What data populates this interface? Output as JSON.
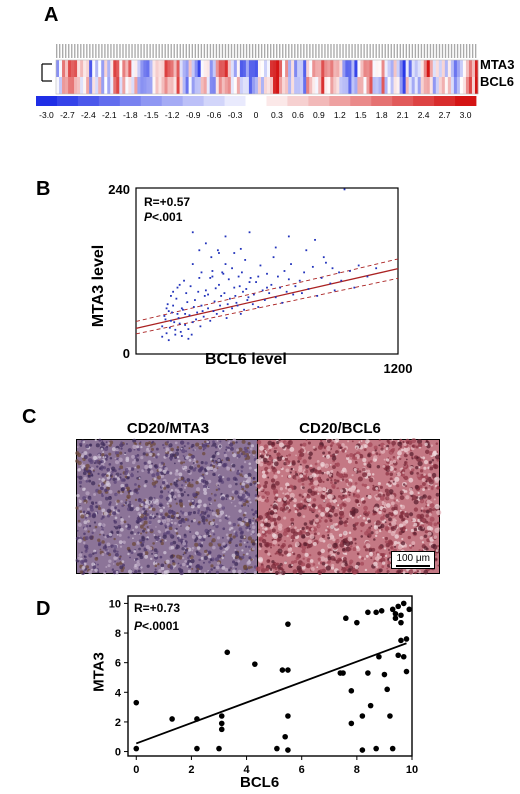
{
  "panelA": {
    "letter": "A",
    "rows": [
      "MTA3",
      "BCL6"
    ],
    "scale_ticks": [
      "-3.0",
      "-2.7",
      "-2.4",
      "-2.1",
      "-1.8",
      "-1.5",
      "-1.2",
      "-0.9",
      "-0.6",
      "-0.3",
      "0",
      "0.3",
      "0.6",
      "0.9",
      "1.2",
      "1.5",
      "1.8",
      "2.1",
      "2.4",
      "2.7",
      "3.0"
    ],
    "low_color": "#1f2ee6",
    "mid_color": "#ffffff",
    "high_color": "#d41414"
  },
  "panelB": {
    "letter": "B",
    "stat_r": "R=+0.57",
    "stat_p_symbol": "P",
    "stat_p_value": "<.001",
    "chart_data": {
      "type": "scatter",
      "xlabel": "BCL6 level",
      "ylabel": "MTA3 level",
      "y_top_label": "240",
      "y_bottom_label": "0",
      "x_right_label": "1200",
      "xlim": [
        0,
        1200
      ],
      "ylim": [
        0,
        240
      ],
      "regression": {
        "slope": 0.072,
        "intercept": 37
      },
      "point_color": "#2233bb",
      "fit_color": "#aa2222",
      "points": [
        [
          120,
          40
        ],
        [
          130,
          55
        ],
        [
          140,
          30
        ],
        [
          150,
          62
        ],
        [
          160,
          48
        ],
        [
          170,
          70
        ],
        [
          180,
          35
        ],
        [
          190,
          58
        ],
        [
          200,
          44
        ],
        [
          210,
          66
        ],
        [
          120,
          25
        ],
        [
          135,
          50
        ],
        [
          145,
          72
        ],
        [
          155,
          38
        ],
        [
          165,
          60
        ],
        [
          175,
          46
        ],
        [
          185,
          80
        ],
        [
          195,
          52
        ],
        [
          205,
          32
        ],
        [
          215,
          64
        ],
        [
          225,
          42
        ],
        [
          235,
          75
        ],
        [
          245,
          56
        ],
        [
          255,
          28
        ],
        [
          265,
          68
        ],
        [
          275,
          50
        ],
        [
          285,
          90
        ],
        [
          295,
          40
        ],
        [
          305,
          62
        ],
        [
          315,
          84
        ],
        [
          225,
          58
        ],
        [
          240,
          36
        ],
        [
          250,
          98
        ],
        [
          260,
          46
        ],
        [
          270,
          78
        ],
        [
          280,
          60
        ],
        [
          290,
          110
        ],
        [
          300,
          70
        ],
        [
          310,
          54
        ],
        [
          320,
          92
        ],
        [
          330,
          66
        ],
        [
          340,
          48
        ],
        [
          350,
          120
        ],
        [
          360,
          76
        ],
        [
          370,
          58
        ],
        [
          380,
          100
        ],
        [
          390,
          84
        ],
        [
          400,
          62
        ],
        [
          410,
          130
        ],
        [
          420,
          72
        ],
        [
          330,
          86
        ],
        [
          345,
          140
        ],
        [
          355,
          62
        ],
        [
          365,
          95
        ],
        [
          375,
          150
        ],
        [
          385,
          70
        ],
        [
          395,
          118
        ],
        [
          405,
          88
        ],
        [
          415,
          52
        ],
        [
          425,
          108
        ],
        [
          430,
          80
        ],
        [
          440,
          66
        ],
        [
          450,
          96
        ],
        [
          460,
          74
        ],
        [
          470,
          112
        ],
        [
          480,
          58
        ],
        [
          490,
          90
        ],
        [
          500,
          136
        ],
        [
          510,
          78
        ],
        [
          520,
          104
        ],
        [
          440,
          124
        ],
        [
          455,
          84
        ],
        [
          465,
          70
        ],
        [
          475,
          98
        ],
        [
          485,
          118
        ],
        [
          495,
          64
        ],
        [
          505,
          94
        ],
        [
          515,
          82
        ],
        [
          525,
          110
        ],
        [
          535,
          72
        ],
        [
          540,
          86
        ],
        [
          550,
          104
        ],
        [
          560,
          68
        ],
        [
          570,
          128
        ],
        [
          580,
          92
        ],
        [
          590,
          78
        ],
        [
          600,
          116
        ],
        [
          610,
          88
        ],
        [
          620,
          100
        ],
        [
          630,
          140
        ],
        [
          640,
          82
        ],
        [
          650,
          112
        ],
        [
          660,
          96
        ],
        [
          670,
          74
        ],
        [
          680,
          120
        ],
        [
          690,
          90
        ],
        [
          700,
          108
        ],
        [
          710,
          130
        ],
        [
          720,
          86
        ],
        [
          730,
          98
        ],
        [
          750,
          106
        ],
        [
          770,
          118
        ],
        [
          790,
          94
        ],
        [
          810,
          126
        ],
        [
          830,
          84
        ],
        [
          850,
          110
        ],
        [
          870,
          132
        ],
        [
          890,
          102
        ],
        [
          910,
          92
        ],
        [
          930,
          118
        ],
        [
          780,
          150
        ],
        [
          820,
          165
        ],
        [
          860,
          140
        ],
        [
          900,
          124
        ],
        [
          940,
          106
        ],
        [
          980,
          120
        ],
        [
          1020,
          128
        ],
        [
          1060,
          112
        ],
        [
          1000,
          96
        ],
        [
          955,
          238
        ],
        [
          150,
          20
        ],
        [
          180,
          28
        ],
        [
          210,
          26
        ],
        [
          240,
          22
        ],
        [
          170,
          90
        ],
        [
          200,
          100
        ],
        [
          230,
          88
        ],
        [
          260,
          130
        ],
        [
          290,
          150
        ],
        [
          320,
          160
        ],
        [
          350,
          112
        ],
        [
          380,
          146
        ],
        [
          410,
          170
        ],
        [
          260,
          176
        ],
        [
          300,
          118
        ],
        [
          340,
          110
        ],
        [
          400,
          116
        ],
        [
          450,
          146
        ],
        [
          480,
          152
        ],
        [
          520,
          176
        ],
        [
          140,
          66
        ],
        [
          160,
          84
        ],
        [
          190,
          96
        ],
        [
          220,
          106
        ],
        [
          560,
          112
        ],
        [
          600,
          96
        ],
        [
          640,
          154
        ],
        [
          700,
          170
        ],
        [
          760,
          88
        ],
        [
          1100,
          124
        ]
      ]
    }
  },
  "panelC": {
    "letter": "C",
    "left_title": "CD20/MTA3",
    "right_title": "CD20/BCL6",
    "scalebar_label": "100 μm"
  },
  "panelD": {
    "letter": "D",
    "stat_r": "R=+0.73",
    "stat_p_symbol": "P",
    "stat_p_value": "<.0001",
    "chart_data": {
      "type": "scatter",
      "xlabel": "BCL6",
      "ylabel": "MTA3",
      "xlim": [
        -0.3,
        10
      ],
      "ylim": [
        -0.3,
        10.5
      ],
      "x_ticks": [
        "0",
        "2",
        "4",
        "6",
        "8",
        "10"
      ],
      "x_tick_values": [
        0,
        2,
        4,
        6,
        8,
        10
      ],
      "y_ticks": [
        "0",
        "2",
        "4",
        "6",
        "8",
        "10"
      ],
      "y_tick_values": [
        0,
        2,
        4,
        6,
        8,
        10
      ],
      "regression": {
        "slope": 0.69,
        "intercept": 0.55
      },
      "points": [
        [
          0,
          3.3
        ],
        [
          0,
          0.2
        ],
        [
          1.3,
          2.2
        ],
        [
          2.2,
          2.2
        ],
        [
          2.2,
          0.2
        ],
        [
          3.0,
          0.2
        ],
        [
          3.1,
          2.4
        ],
        [
          3.1,
          1.9
        ],
        [
          3.1,
          1.5
        ],
        [
          3.3,
          6.7
        ],
        [
          4.3,
          5.9
        ],
        [
          5.3,
          5.5
        ],
        [
          5.5,
          5.5
        ],
        [
          5.5,
          2.4
        ],
        [
          5.5,
          8.6
        ],
        [
          5.5,
          0.1
        ],
        [
          5.1,
          0.2
        ],
        [
          5.4,
          1.0
        ],
        [
          7.4,
          5.3
        ],
        [
          7.5,
          5.3
        ],
        [
          7.6,
          9.0
        ],
        [
          7.8,
          4.1
        ],
        [
          7.8,
          1.9
        ],
        [
          8.0,
          8.7
        ],
        [
          8.2,
          2.4
        ],
        [
          8.2,
          0.1
        ],
        [
          8.4,
          5.3
        ],
        [
          8.4,
          9.4
        ],
        [
          8.5,
          3.1
        ],
        [
          8.7,
          9.4
        ],
        [
          8.7,
          0.2
        ],
        [
          8.8,
          6.4
        ],
        [
          8.9,
          9.5
        ],
        [
          9.0,
          5.2
        ],
        [
          9.1,
          4.2
        ],
        [
          9.2,
          2.4
        ],
        [
          9.3,
          0.2
        ],
        [
          9.3,
          9.6
        ],
        [
          9.4,
          9.3
        ],
        [
          9.5,
          9.8
        ],
        [
          9.5,
          6.5
        ],
        [
          9.6,
          8.7
        ],
        [
          9.6,
          7.5
        ],
        [
          9.7,
          6.4
        ],
        [
          9.7,
          10.0
        ],
        [
          9.8,
          7.6
        ],
        [
          9.8,
          5.4
        ],
        [
          9.4,
          9.0
        ],
        [
          9.6,
          9.2
        ],
        [
          9.9,
          9.6
        ]
      ]
    }
  }
}
